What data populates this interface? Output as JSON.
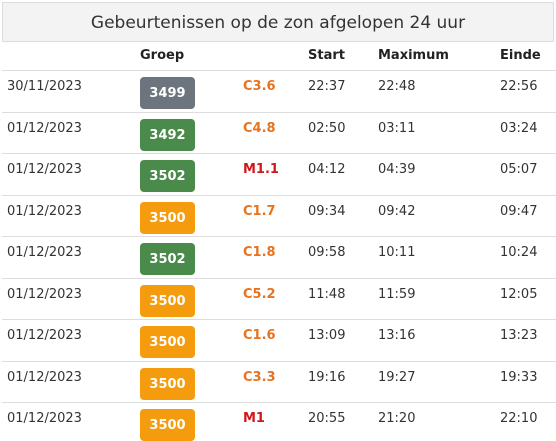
{
  "header": {
    "title": "Gebeurtenissen op de zon afgelopen 24 uur"
  },
  "table": {
    "columns": [
      "",
      "Groep",
      "",
      "Start",
      "Maximum",
      "Einde"
    ],
    "rows": [
      {
        "date": "30/11/2023",
        "group": "3499",
        "group_color": "#6c757d",
        "class": "C3.6",
        "class_color": "#e8731e",
        "start": "22:37",
        "maximum": "22:48",
        "end": "22:56"
      },
      {
        "date": "01/12/2023",
        "group": "3492",
        "group_color": "#4a8a4a",
        "class": "C4.8",
        "class_color": "#e8731e",
        "start": "02:50",
        "maximum": "03:11",
        "end": "03:24"
      },
      {
        "date": "01/12/2023",
        "group": "3502",
        "group_color": "#4a8a4a",
        "class": "M1.1",
        "class_color": "#d0181c",
        "start": "04:12",
        "maximum": "04:39",
        "end": "05:07"
      },
      {
        "date": "01/12/2023",
        "group": "3500",
        "group_color": "#f59c0e",
        "class": "C1.7",
        "class_color": "#e8731e",
        "start": "09:34",
        "maximum": "09:42",
        "end": "09:47"
      },
      {
        "date": "01/12/2023",
        "group": "3502",
        "group_color": "#4a8a4a",
        "class": "C1.8",
        "class_color": "#e8731e",
        "start": "09:58",
        "maximum": "10:11",
        "end": "10:24"
      },
      {
        "date": "01/12/2023",
        "group": "3500",
        "group_color": "#f59c0e",
        "class": "C5.2",
        "class_color": "#e8731e",
        "start": "11:48",
        "maximum": "11:59",
        "end": "12:05"
      },
      {
        "date": "01/12/2023",
        "group": "3500",
        "group_color": "#f59c0e",
        "class": "C1.6",
        "class_color": "#e8731e",
        "start": "13:09",
        "maximum": "13:16",
        "end": "13:23"
      },
      {
        "date": "01/12/2023",
        "group": "3500",
        "group_color": "#f59c0e",
        "class": "C3.3",
        "class_color": "#e8731e",
        "start": "19:16",
        "maximum": "19:27",
        "end": "19:33"
      },
      {
        "date": "01/12/2023",
        "group": "3500",
        "group_color": "#f59c0e",
        "class": "M1",
        "class_color": "#d0181c",
        "start": "20:55",
        "maximum": "21:20",
        "end": "22:10"
      }
    ]
  }
}
